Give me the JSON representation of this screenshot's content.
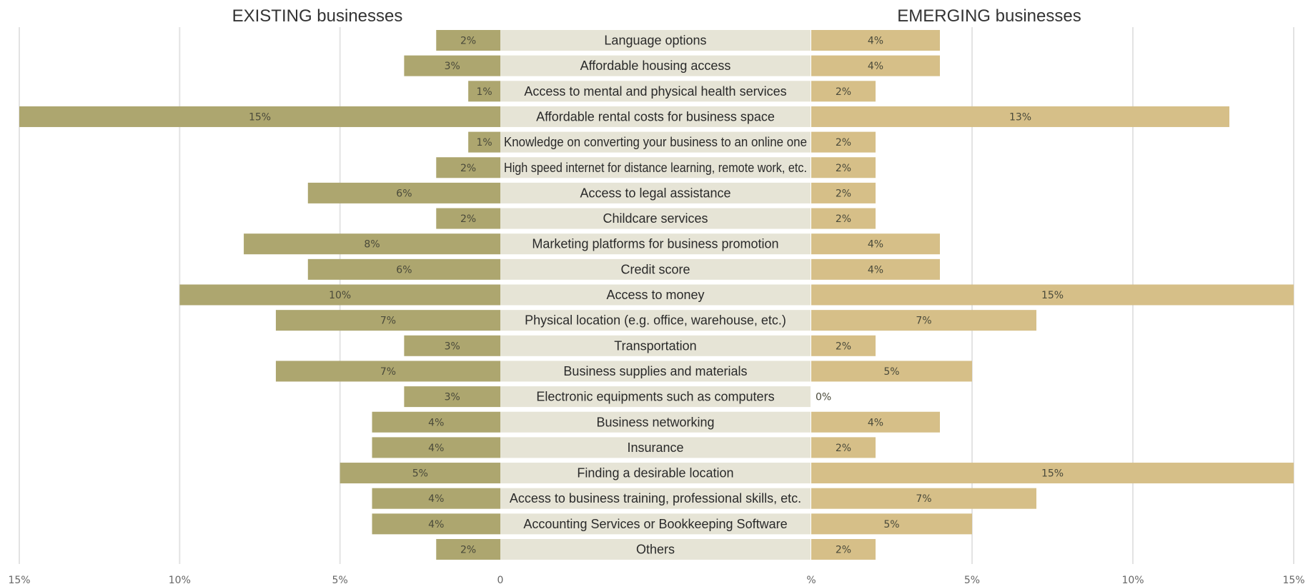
{
  "chart_data": {
    "type": "bar",
    "subtype": "diverging-horizontal",
    "categories": [
      "Language options",
      "Affordable housing access",
      "Access to mental and physical health services",
      "Affordable rental costs for business space",
      "Knowledge on converting your business to an online one",
      "High speed internet for distance learning, remote work, etc.",
      "Access to legal assistance",
      "Childcare services",
      "Marketing platforms for business promotion",
      "Credit score",
      "Access to money",
      "Physical location (e.g. office, warehouse, etc.)",
      "Transportation",
      "Business supplies and materials",
      "Electronic equipments such as computers",
      "Business networking",
      "Insurance",
      "Finding a desirable location",
      "Access to business training, professional skills, etc.",
      "Accounting Services or Bookkeeping Software",
      "Others"
    ],
    "series": [
      {
        "name": "EXISTING businesses",
        "side": "left",
        "color": "#ada66f",
        "values": [
          2,
          3,
          1,
          15,
          1,
          2,
          6,
          2,
          8,
          6,
          10,
          7,
          3,
          7,
          3,
          4,
          4,
          5,
          4,
          4,
          2
        ],
        "labels": [
          "2%",
          "3%",
          "1%",
          "15%",
          "1%",
          "2%",
          "6%",
          "2%",
          "8%",
          "6%",
          "10%",
          "7%",
          "3%",
          "7%",
          "3%",
          "4%",
          "4%",
          "5%",
          "4%",
          "4%",
          "2%"
        ]
      },
      {
        "name": "EMERGING businesses",
        "side": "right",
        "color": "#d6bf88",
        "values": [
          4,
          4,
          2,
          13,
          2,
          2,
          2,
          2,
          4,
          4,
          15,
          7,
          2,
          5,
          0,
          4,
          2,
          15,
          7,
          5,
          2
        ],
        "labels": [
          "4%",
          "4%",
          "2%",
          "13%",
          "2%",
          "2%",
          "2%",
          "2%",
          "4%",
          "4%",
          "15%",
          "7%",
          "2%",
          "5%",
          "0%",
          "4%",
          "2%",
          "15%",
          "7%",
          "5%",
          "2%"
        ]
      }
    ],
    "label_band_color": "#e6e4d6",
    "xlim": [
      0,
      15
    ],
    "left_ticks": [
      {
        "value": 15,
        "label": "15%"
      },
      {
        "value": 10,
        "label": "10%"
      },
      {
        "value": 5,
        "label": "5%"
      },
      {
        "value": 0,
        "label": "0"
      }
    ],
    "right_ticks": [
      {
        "value": 0,
        "label": "%"
      },
      {
        "value": 5,
        "label": "5%"
      },
      {
        "value": 10,
        "label": "10%"
      },
      {
        "value": 15,
        "label": "15%"
      }
    ],
    "grid": true,
    "xlabel": "",
    "ylabel": ""
  }
}
